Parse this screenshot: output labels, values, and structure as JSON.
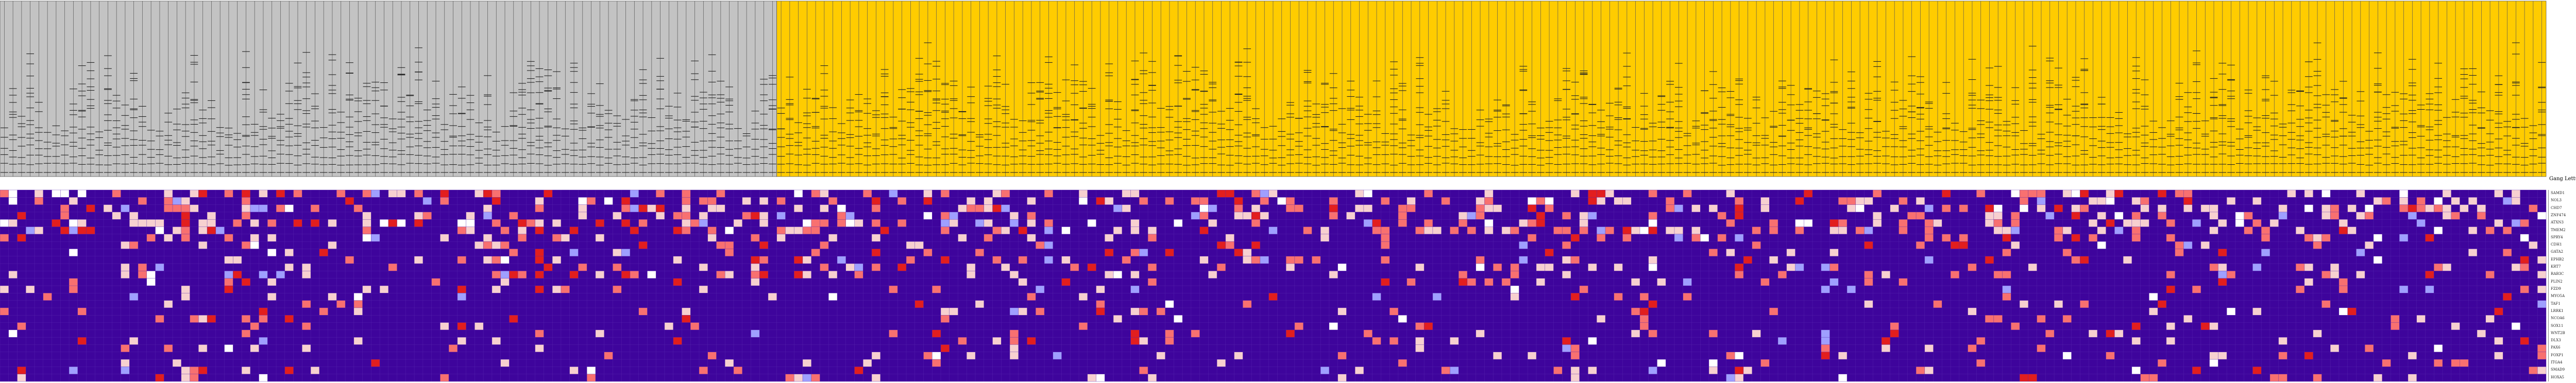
{
  "legend": {
    "title": "Gang Lettuces"
  },
  "gene_labels": [
    "SAMD1",
    "NOL3",
    "CHD7",
    "ZNF474",
    "ATXN3",
    "TMEM2",
    "SPRY4",
    "CDH1",
    "GATA2",
    "EPHB2",
    "KRT7",
    "RAB3C",
    "PLIN2",
    "FZD9",
    "MYO5A",
    "TAF1",
    "LRRK1",
    "NCOA6",
    "SOX11",
    "WNT2B",
    "DLX3",
    "PAX6",
    "FOXP1",
    "ITGA4",
    "SMAD9",
    "HOXA5"
  ],
  "dendrogram": {
    "groups": [
      {
        "name": "",
        "leaves": 90,
        "color": "#c3c3c3"
      },
      {
        "name": "",
        "leaves": 205,
        "color": "#ffcc00"
      }
    ]
  },
  "heatmap": {
    "rows": 26,
    "columns": 295,
    "palette": {
      "background": "#3e049c",
      "light": "#f7d0d0",
      "mid": "#f87070",
      "strong": "#e21e1e",
      "alt": "#9f9fff",
      "white": "#ffffff"
    }
  },
  "colors": {
    "gray_cluster": "#c3c3c3",
    "gold_cluster": "#ffcc00",
    "heat_background": "#3e049c"
  }
}
